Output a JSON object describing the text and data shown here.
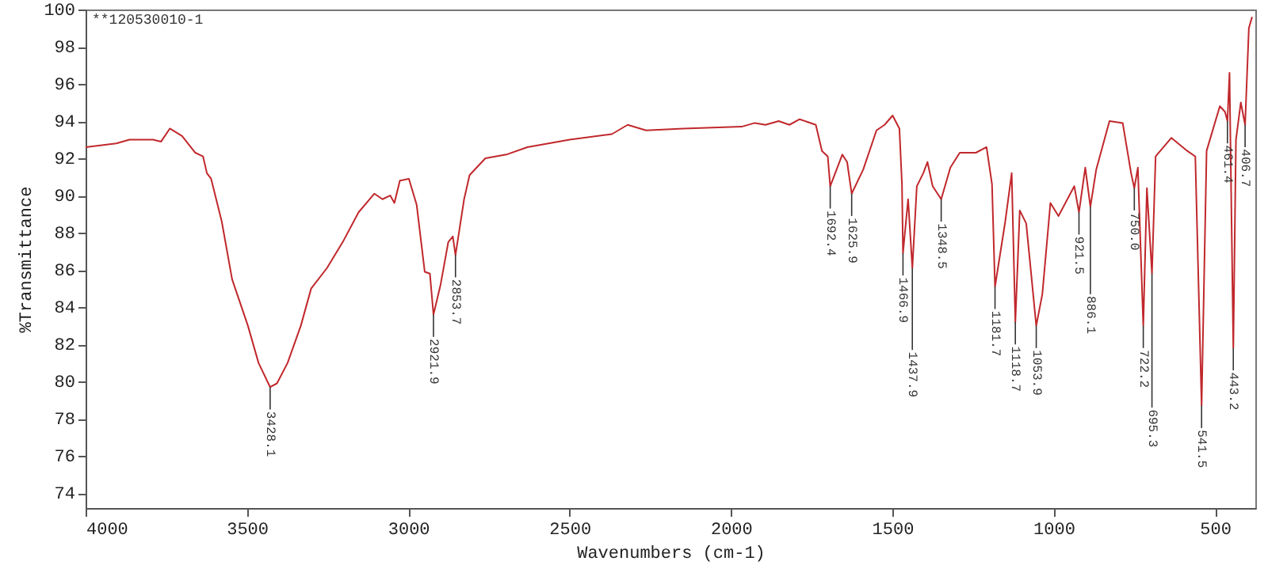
{
  "chart_data": {
    "type": "line",
    "xlabel": "Wavenumbers (cm-1)",
    "ylabel": "%Transmittance",
    "x": [
      4000,
      3905,
      3864,
      3791,
      3766,
      3739,
      3701,
      3660,
      3636,
      3624,
      3611,
      3578,
      3546,
      3497,
      3464,
      3428.1,
      3407,
      3374,
      3333,
      3301,
      3252,
      3203,
      3154,
      3105,
      3080,
      3056,
      3043,
      3026,
      2998,
      2974,
      2949,
      2933,
      2921.9,
      2900,
      2876,
      2862,
      2853.7,
      2827,
      2810,
      2761,
      2696,
      2631,
      2500,
      2369,
      2320,
      2263,
      2148,
      1967,
      1926,
      1893,
      1852,
      1819,
      1787,
      1737,
      1718,
      1700,
      1692.4,
      1655,
      1640,
      1625.9,
      1590,
      1549,
      1524,
      1499,
      1478,
      1470,
      1466.9,
      1451,
      1437.9,
      1424,
      1404,
      1391,
      1375,
      1348.5,
      1320,
      1291,
      1241,
      1208,
      1191,
      1181.7,
      1150,
      1130,
      1118.7,
      1105,
      1085,
      1053.9,
      1035,
      1010,
      985,
      936,
      921.5,
      902,
      886.1,
      868,
      827,
      786,
      760,
      750.0,
      739,
      722.2,
      711,
      695.3,
      684,
      635,
      586,
      561,
      541.5,
      526,
      485,
      469,
      461.4,
      455,
      443.2,
      435,
      420,
      406.7,
      395,
      385
    ],
    "series": [
      {
        "color": "#c0282c",
        "values": [
          92.6,
          92.8,
          93.0,
          93.0,
          92.9,
          93.6,
          93.2,
          92.3,
          92.1,
          91.2,
          90.9,
          88.6,
          85.5,
          83.0,
          81.0,
          79.7,
          79.9,
          81.0,
          83.0,
          85.0,
          86.1,
          87.5,
          89.1,
          90.1,
          89.8,
          90.0,
          89.6,
          90.8,
          90.9,
          89.5,
          85.9,
          85.8,
          83.6,
          85.2,
          87.5,
          87.8,
          86.8,
          89.8,
          91.1,
          92.0,
          92.2,
          92.6,
          93.0,
          93.3,
          93.8,
          93.5,
          93.6,
          93.7,
          93.9,
          93.8,
          94.0,
          93.8,
          94.1,
          93.8,
          92.4,
          92.1,
          90.5,
          92.2,
          91.8,
          90.1,
          91.4,
          93.5,
          93.8,
          94.3,
          93.6,
          90.6,
          86.9,
          89.8,
          86.1,
          90.5,
          91.2,
          91.8,
          90.5,
          89.8,
          91.5,
          92.3,
          92.3,
          92.6,
          90.6,
          85.1,
          88.6,
          91.2,
          83.2,
          89.2,
          88.5,
          83.0,
          84.7,
          89.6,
          88.9,
          90.5,
          89.1,
          91.5,
          89.4,
          91.4,
          94.0,
          93.9,
          91.2,
          90.4,
          91.5,
          83.0,
          90.4,
          85.8,
          92.1,
          93.1,
          92.4,
          92.1,
          78.7,
          92.4,
          94.8,
          94.5,
          94.0,
          96.6,
          81.8,
          93.0,
          95.0,
          93.8,
          99.0,
          99.6
        ]
      }
    ],
    "xlim": [
      4000,
      375
    ],
    "ylim": [
      73.2,
      100
    ],
    "xticks": [
      4000,
      3500,
      3000,
      2500,
      2000,
      1500,
      1000,
      500
    ],
    "yticks": [
      74,
      76,
      78,
      80,
      82,
      84,
      86,
      88,
      90,
      92,
      94,
      96,
      98,
      100
    ],
    "grid": false,
    "annotations": [
      "**120530010-1",
      {
        "text": "3428.1",
        "x": 3428.1,
        "y": 79.7
      },
      {
        "text": "2921.9",
        "x": 2921.9,
        "y": 83.6
      },
      {
        "text": "2853.7",
        "x": 2853.7,
        "y": 86.8
      },
      {
        "text": "1692.4",
        "x": 1692.4,
        "y": 90.5
      },
      {
        "text": "1625.9",
        "x": 1625.9,
        "y": 90.1
      },
      {
        "text": "1466.9",
        "x": 1466.9,
        "y": 86.9
      },
      {
        "text": "1437.9",
        "x": 1437.9,
        "y": 86.1
      },
      {
        "text": "1348.5",
        "x": 1348.5,
        "y": 89.8
      },
      {
        "text": "1181.7",
        "x": 1181.7,
        "y": 85.1
      },
      {
        "text": "1118.7",
        "x": 1118.7,
        "y": 83.2
      },
      {
        "text": "1053.9",
        "x": 1053.9,
        "y": 83.0
      },
      {
        "text": "921.5",
        "x": 921.5,
        "y": 89.1
      },
      {
        "text": "886.1",
        "x": 886.1,
        "y": 89.4
      },
      {
        "text": "750.0",
        "x": 750.0,
        "y": 90.4
      },
      {
        "text": "722.2",
        "x": 722.2,
        "y": 83.0
      },
      {
        "text": "695.3",
        "x": 695.3,
        "y": 85.8
      },
      {
        "text": "541.5",
        "x": 541.5,
        "y": 78.7
      },
      {
        "text": "461.4",
        "x": 461.4,
        "y": 94.0
      },
      {
        "text": "443.2",
        "x": 443.2,
        "y": 81.8
      },
      {
        "text": "406.7",
        "x": 406.7,
        "y": 93.8
      }
    ]
  }
}
